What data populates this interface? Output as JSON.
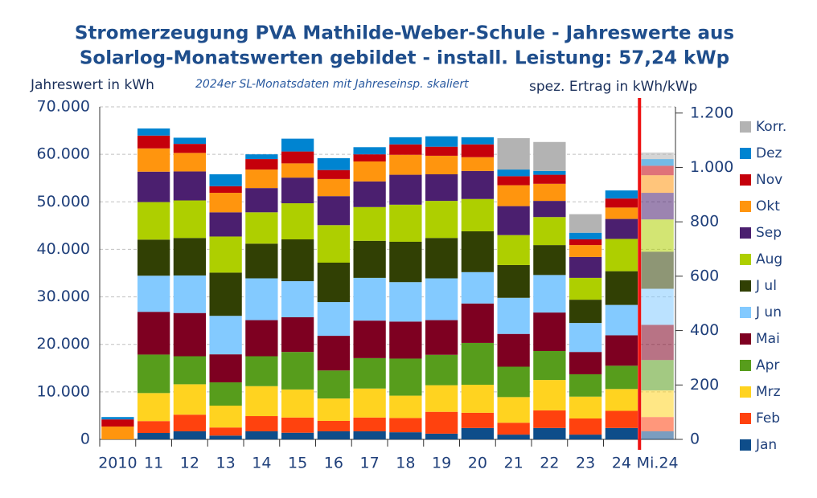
{
  "chart_data": {
    "type": "bar",
    "title": "Stromerzeugung PVA Mathilde-Weber-Schule - Jahreswerte aus",
    "subtitle": "Solarlog-Monatswerten gebildet - install. Leistung: 57,24 kWp",
    "y_label": "Jahreswert in kWh",
    "y2_label": "spez. Ertrag in kWh/kWp",
    "annotation": "2024er SL-Monatsdaten mit Jahreseinsp. skaliert",
    "categories": [
      "2010",
      "11",
      "12",
      "13",
      "14",
      "15",
      "16",
      "17",
      "18",
      "19",
      "20",
      "21",
      "22",
      "23",
      "24",
      "Mi.24"
    ],
    "stacked": true,
    "ylim": [
      0,
      70000
    ],
    "yticks": [
      0,
      {
        "value": 10000,
        "label": "10.000"
      },
      {
        "value": 20000,
        "label": "20.000"
      },
      {
        "value": 30000,
        "label": "30.000"
      },
      {
        "value": 40000,
        "label": "40.000"
      },
      {
        "value": 50000,
        "label": "50.000"
      },
      {
        "value": 60000,
        "label": "60.000"
      },
      {
        "value": 70000,
        "label": "70.000"
      }
    ],
    "y2lim": [
      0,
      1222.9
    ],
    "y2ticks": [
      0,
      200,
      400,
      600,
      800,
      {
        "value": 1000,
        "label": "1.000"
      },
      {
        "value": 1200,
        "label": "1.200"
      }
    ],
    "grid": true,
    "legend": "right",
    "series": [
      {
        "name": "Jan",
        "color": "#0e4d8a",
        "values": [
          0,
          1350,
          1700,
          800,
          1700,
          1400,
          1700,
          1700,
          1500,
          1200,
          2400,
          1000,
          2400,
          1000,
          2400,
          1700
        ]
      },
      {
        "name": "Feb",
        "color": "#ff420e",
        "values": [
          0,
          2500,
          3500,
          1700,
          3200,
          3200,
          2200,
          2900,
          3000,
          4600,
          3200,
          2500,
          3700,
          3400,
          3600,
          3000
        ]
      },
      {
        "name": "Mrz",
        "color": "#ffd320",
        "values": [
          0,
          5900,
          6400,
          4600,
          6300,
          5900,
          4700,
          6100,
          4700,
          5600,
          5900,
          5400,
          6400,
          4600,
          4600,
          5600
        ]
      },
      {
        "name": "Apr",
        "color": "#579d1c",
        "values": [
          0,
          8100,
          5900,
          4900,
          6300,
          7900,
          5900,
          6400,
          7800,
          6400,
          8800,
          6400,
          6100,
          4700,
          4900,
          6400
        ]
      },
      {
        "name": "Mai",
        "color": "#7e0021",
        "values": [
          0,
          9000,
          9100,
          5900,
          7600,
          7300,
          7300,
          7900,
          7800,
          7300,
          8300,
          6900,
          8100,
          4700,
          6400,
          7400
        ]
      },
      {
        "name": "J un",
        "color": "#83caff",
        "values": [
          0,
          7600,
          7900,
          8100,
          8800,
          7600,
          7100,
          9000,
          8300,
          8800,
          6600,
          7600,
          7900,
          6100,
          6400,
          7600
        ]
      },
      {
        "name": "J ul",
        "color": "#314004",
        "values": [
          0,
          7600,
          7900,
          9100,
          7300,
          8800,
          8300,
          7800,
          8500,
          8500,
          8600,
          6900,
          6300,
          4900,
          7100,
          7800
        ]
      },
      {
        "name": "Aug",
        "color": "#aecf00",
        "values": [
          0,
          7900,
          7900,
          7600,
          6600,
          7600,
          7900,
          7100,
          7800,
          7800,
          6800,
          6300,
          5900,
          4600,
          6800,
          6800
        ]
      },
      {
        "name": "Sep",
        "color": "#4b1f6f",
        "values": [
          0,
          6400,
          6100,
          5100,
          5100,
          5400,
          6100,
          5400,
          6300,
          5600,
          5900,
          6100,
          3400,
          4400,
          4200,
          5600
        ]
      },
      {
        "name": "Okt",
        "color": "#ff950e",
        "values": [
          2700,
          4900,
          3900,
          4100,
          3900,
          3000,
          3600,
          4200,
          4200,
          3900,
          2900,
          4400,
          3600,
          2500,
          2400,
          3700
        ]
      },
      {
        "name": "Nov",
        "color": "#c5000b",
        "values": [
          1500,
          2700,
          1900,
          1400,
          2200,
          2500,
          1900,
          1500,
          2200,
          1900,
          2700,
          1900,
          1900,
          1200,
          1900,
          2000
        ]
      },
      {
        "name": "Dez",
        "color": "#0084d1",
        "values": [
          500,
          1500,
          1300,
          2500,
          1000,
          2700,
          2500,
          1500,
          1500,
          2200,
          1500,
          1400,
          800,
          1400,
          1700,
          1400
        ]
      },
      {
        "name": "Korr.",
        "color": "#b3b3b3",
        "values": [
          0,
          0,
          0,
          0,
          0,
          0,
          0,
          0,
          0,
          0,
          0,
          6600,
          6100,
          3900,
          0,
          1400
        ]
      }
    ]
  }
}
